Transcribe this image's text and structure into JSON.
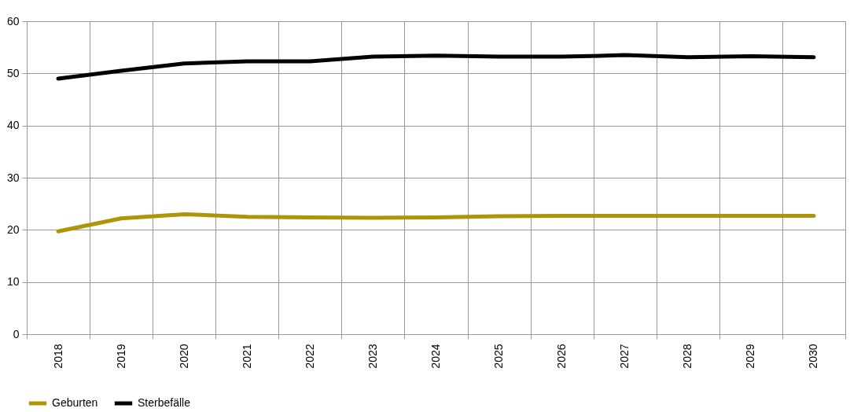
{
  "chart_data": {
    "type": "line",
    "categories": [
      "2018",
      "2019",
      "2020",
      "2021",
      "2022",
      "2023",
      "2024",
      "2025",
      "2026",
      "2027",
      "2028",
      "2029",
      "2030"
    ],
    "series": [
      {
        "name": "Geburten",
        "color": "#ae9409",
        "values": [
          19.7,
          22.2,
          23.0,
          22.5,
          22.4,
          22.3,
          22.4,
          22.6,
          22.7,
          22.7,
          22.7,
          22.7,
          22.7
        ]
      },
      {
        "name": "Sterbefälle",
        "color": "#000000",
        "values": [
          49.0,
          50.5,
          51.9,
          52.3,
          52.3,
          53.2,
          53.4,
          53.2,
          53.2,
          53.5,
          53.1,
          53.3,
          53.1
        ]
      }
    ],
    "ylim": [
      0,
      60
    ],
    "yticks": [
      0,
      10,
      20,
      30,
      40,
      50,
      60
    ],
    "grid": true,
    "legend": "bottom",
    "marker": "none",
    "line_style": "solid"
  }
}
